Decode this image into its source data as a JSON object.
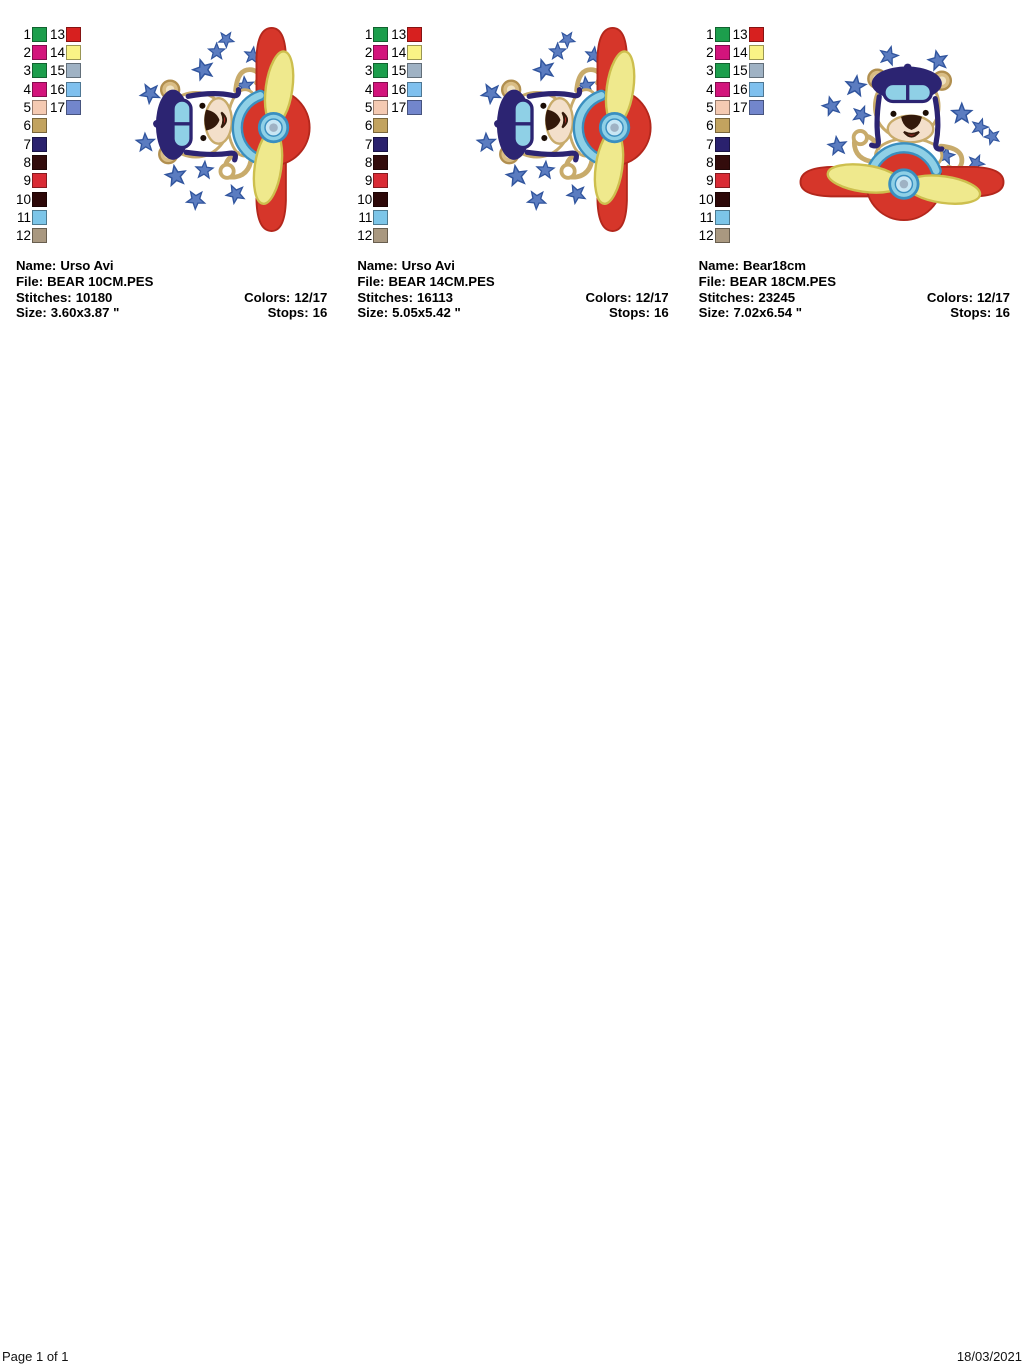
{
  "page": {
    "footer": {
      "left": "Page 1 of 1",
      "right": "18/03/2021"
    }
  },
  "labels": {
    "name": "Name:",
    "file": "File:",
    "stitches": "Stitches:",
    "colors": "Colors:",
    "size": "Size:",
    "stops": "Stops:"
  },
  "designs": [
    {
      "name": "Urso Avi",
      "file": "BEAR 10CM.PES",
      "stitches": "10180",
      "colors": "12/17",
      "size": "3.60x3.87 \"",
      "stops": "16"
    },
    {
      "name": "Urso Avi",
      "file": "BEAR 14CM.PES",
      "stitches": "16113",
      "colors": "12/17",
      "size": "5.05x5.42 \"",
      "stops": "16"
    },
    {
      "name": "Bear18cm",
      "file": "BEAR 18CM.PES",
      "stitches": "23245",
      "colors": "12/17",
      "size": "7.02x6.54 \"",
      "stops": "16"
    }
  ],
  "palette": {
    "entries": [
      {
        "num": "1",
        "color": "#1c9e4c"
      },
      {
        "num": "2",
        "color": "#d3147c"
      },
      {
        "num": "3",
        "color": "#1c9e4c"
      },
      {
        "num": "4",
        "color": "#d3147c"
      },
      {
        "num": "5",
        "color": "#f5cab2"
      },
      {
        "num": "6",
        "color": "#c2a35f"
      },
      {
        "num": "7",
        "color": "#2a216e"
      },
      {
        "num": "8",
        "color": "#330c0c"
      },
      {
        "num": "9",
        "color": "#d92b35"
      },
      {
        "num": "10",
        "color": "#2d0808"
      },
      {
        "num": "11",
        "color": "#7cc5e8"
      },
      {
        "num": "12",
        "color": "#a99880"
      },
      {
        "num": "13",
        "color": "#d7201f"
      },
      {
        "num": "14",
        "color": "#f9f386"
      },
      {
        "num": "15",
        "color": "#9fb2c4"
      },
      {
        "num": "16",
        "color": "#7fc0ee"
      },
      {
        "num": "17",
        "color": "#7286cc"
      }
    ]
  },
  "artwork": {
    "colors": {
      "red": "#d6362a",
      "red_dark": "#b3271c",
      "yellow": "#efe98d",
      "yellow_dark": "#cdbf4e",
      "blue_light": "#8fd0e6",
      "blue_pale": "#c8e6f4",
      "blue_dark": "#3a8fc0",
      "navy": "#2c2472",
      "tan": "#c8ab6b",
      "tan_dark": "#b18f4f",
      "tan_fill": "#d9bd85",
      "tan_light": "#efe2c2",
      "face": "#ffffff",
      "muzzle": "#f3dfca",
      "nose": "#33190b",
      "eye": "#1b0d05",
      "star": "#5b7cc0",
      "star_dark": "#31559e",
      "mouth": "#c23030",
      "hub_core": "#9fb2c4"
    }
  }
}
